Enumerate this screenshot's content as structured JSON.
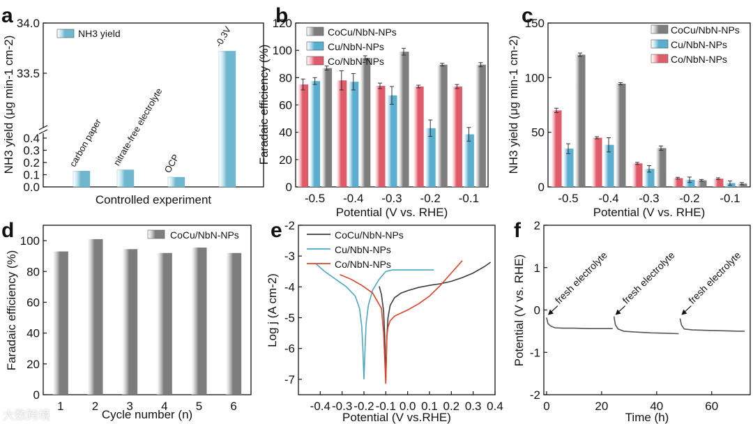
{
  "watermark": "大数跨境",
  "chart_data": [
    {
      "panel": "a",
      "type": "bar",
      "categories": [
        "carbon paper",
        "nitrate-free electrolyte",
        "OCP",
        "-0.3V"
      ],
      "values": [
        0.13,
        0.14,
        0.08,
        33.72
      ],
      "xlabel": "Controlled experiment",
      "ylabel": "NH3 yield (μg min-1 cm-2)",
      "yticks_low": [
        "0.0",
        "0.1",
        "0.2",
        "0.3",
        "0.4"
      ],
      "yticks_high": [
        "33.5",
        "34.0"
      ],
      "legend": [
        "NH3 yield"
      ],
      "colors": {
        "bar": "#6fb7cf"
      }
    },
    {
      "panel": "b",
      "type": "bar",
      "categories": [
        "-0.5",
        "-0.4",
        "-0.3",
        "-0.2",
        "-0.1"
      ],
      "series": [
        {
          "name": "Co/NbN-NPs",
          "values": [
            75,
            78,
            74,
            73.5,
            73.5
          ],
          "errors": [
            4,
            7,
            2,
            1,
            1.5
          ],
          "color": "#e05b6a"
        },
        {
          "name": "Cu/NbN-NPs",
          "values": [
            77.5,
            77,
            67,
            43,
            38.5
          ],
          "errors": [
            2.5,
            6,
            6.5,
            6,
            5
          ],
          "color": "#5aaed0"
        },
        {
          "name": "CoCu/NbN-NPs",
          "values": [
            87,
            94.5,
            99,
            89.5,
            89.5
          ],
          "errors": [
            1.5,
            1.5,
            2.5,
            1,
            1.5
          ],
          "color": "#8a8a8a"
        }
      ],
      "legend_order": [
        "CoCu/NbN-NPs",
        "Cu/NbN-NPs",
        "Co/NbN-NPs"
      ],
      "xlabel": "Potential (V vs. RHE)",
      "ylabel": "Faradaic efficiency (%)",
      "ylim": [
        0,
        120
      ],
      "yticks": [
        "0",
        "20",
        "40",
        "60",
        "80",
        "100",
        "120"
      ]
    },
    {
      "panel": "c",
      "type": "bar",
      "categories": [
        "-0.5",
        "-0.4",
        "-0.3",
        "-0.2",
        "-0.1"
      ],
      "series": [
        {
          "name": "Co/NbN-NPs",
          "values": [
            70,
            45,
            21.5,
            8,
            7.5
          ],
          "errors": [
            2,
            1,
            1,
            0.8,
            0.8
          ],
          "color": "#e05b6a"
        },
        {
          "name": "Cu/NbN-NPs",
          "values": [
            35,
            38.5,
            16.5,
            6.5,
            3.5
          ],
          "errors": [
            4.5,
            6.5,
            3,
            2.5,
            2
          ],
          "color": "#5aaed0"
        },
        {
          "name": "CoCu/NbN-NPs",
          "values": [
            121,
            94.5,
            35.5,
            6,
            3
          ],
          "errors": [
            1.5,
            1,
            2,
            0.8,
            1
          ],
          "color": "#8a8a8a"
        }
      ],
      "legend_order": [
        "CoCu/NbN-NPs",
        "Cu/NbN-NPs",
        "Co/NbN-NPs"
      ],
      "xlabel": "Potential (V vs. RHE)",
      "ylabel": "NH3 yield (μg min-1 cm-2)",
      "ylim": [
        0,
        150
      ],
      "yticks": [
        "0",
        "50",
        "100",
        "150"
      ]
    },
    {
      "panel": "d",
      "type": "bar",
      "categories": [
        "1",
        "2",
        "3",
        "4",
        "5",
        "6"
      ],
      "values": [
        93,
        101,
        94.5,
        92,
        95.5,
        92
      ],
      "legend": [
        "CoCu/NbN-NPs"
      ],
      "xlabel": "Cycle number (n)",
      "ylabel": "Faradaic efficiency (%)",
      "ylim": [
        0,
        110
      ],
      "yticks": [
        "0",
        "20",
        "40",
        "60",
        "80",
        "100"
      ],
      "colors": {
        "bar": "#8a8a8a"
      }
    },
    {
      "panel": "e",
      "type": "line",
      "series": [
        {
          "name": "CoCu/NbN-NPs",
          "color": "#3a3a3a",
          "x": [
            -0.13,
            -0.12,
            -0.11,
            -0.105,
            -0.1,
            -0.095,
            -0.09,
            -0.08,
            -0.06,
            -0.03,
            0.0,
            0.05,
            0.1,
            0.15,
            0.2,
            0.25,
            0.3,
            0.35,
            0.38
          ],
          "y": [
            -3.98,
            -4.25,
            -4.8,
            -5.6,
            -7.05,
            -5.6,
            -5.0,
            -4.6,
            -4.35,
            -4.2,
            -4.12,
            -4.02,
            -3.95,
            -3.9,
            -3.82,
            -3.7,
            -3.55,
            -3.35,
            -3.2
          ]
        },
        {
          "name": "Cu/NbN-NPs",
          "color": "#4aa8c0",
          "x": [
            -0.42,
            -0.38,
            -0.33,
            -0.28,
            -0.24,
            -0.22,
            -0.21,
            -0.205,
            -0.2,
            -0.195,
            -0.19,
            -0.18,
            -0.16,
            -0.13,
            -0.1,
            -0.07,
            -0.04,
            0.0,
            0.06,
            0.12
          ],
          "y": [
            -3.25,
            -3.5,
            -3.75,
            -4.0,
            -4.3,
            -4.7,
            -5.3,
            -6.0,
            -7.0,
            -6.0,
            -5.2,
            -4.6,
            -4.1,
            -3.75,
            -3.5,
            -3.45,
            -3.45,
            -3.45,
            -3.45,
            -3.45
          ]
        },
        {
          "name": "Co/NbN-NPs",
          "color": "#d8452a",
          "x": [
            -0.31,
            -0.26,
            -0.21,
            -0.16,
            -0.12,
            -0.11,
            -0.1,
            -0.095,
            -0.09,
            -0.08,
            -0.06,
            -0.03,
            0.0,
            0.05,
            0.1,
            0.15,
            0.2,
            0.25
          ],
          "y": [
            -3.6,
            -3.75,
            -3.95,
            -4.2,
            -4.7,
            -5.5,
            -7.15,
            -5.6,
            -5.3,
            -5.1,
            -4.95,
            -4.85,
            -4.75,
            -4.55,
            -4.3,
            -3.95,
            -3.55,
            -3.15
          ]
        }
      ],
      "xlabel": "Potential (V vs.RHE)",
      "ylabel": "Log j (A cm-2)",
      "xlim": [
        -0.5,
        0.4
      ],
      "ylim": [
        -7.5,
        -2
      ],
      "xticks": [
        "-0.4",
        "-0.3",
        "-0.2",
        "-0.1",
        "0.0",
        "0.1",
        "0.2",
        "0.3",
        "0.4"
      ],
      "yticks": [
        "-7",
        "-6",
        "-5",
        "-4",
        "-3",
        "-2"
      ]
    },
    {
      "panel": "f",
      "type": "line",
      "series": [
        {
          "name": "",
          "color": "#555555",
          "segments": [
            {
              "x": [
                0,
                0.5,
                1.5,
                3,
                6,
                10,
                15,
                20,
                24
              ],
              "y": [
                -0.18,
                -0.32,
                -0.38,
                -0.42,
                -0.43,
                -0.43,
                -0.44,
                -0.44,
                -0.44
              ]
            },
            {
              "x": [
                24.5,
                25,
                26,
                28,
                32,
                38,
                44,
                48
              ],
              "y": [
                -0.15,
                -0.35,
                -0.45,
                -0.5,
                -0.52,
                -0.54,
                -0.55,
                -0.56
              ]
            },
            {
              "x": [
                48.5,
                49,
                50,
                53,
                58,
                64,
                70,
                72
              ],
              "y": [
                -0.2,
                -0.35,
                -0.45,
                -0.47,
                -0.48,
                -0.49,
                -0.5,
                -0.5
              ]
            }
          ]
        }
      ],
      "annotations": [
        "fresh electrolyte",
        "fresh electrolyte",
        "fresh electrolyte"
      ],
      "xlabel": "Time (h)",
      "ylabel": "Potential (V vs. RHE)",
      "xlim": [
        -1,
        74
      ],
      "ylim": [
        -2,
        2
      ],
      "xticks": [
        "0",
        "20",
        "40",
        "60"
      ],
      "yticks": [
        "-2",
        "-1",
        "0",
        "1",
        "2"
      ]
    }
  ]
}
